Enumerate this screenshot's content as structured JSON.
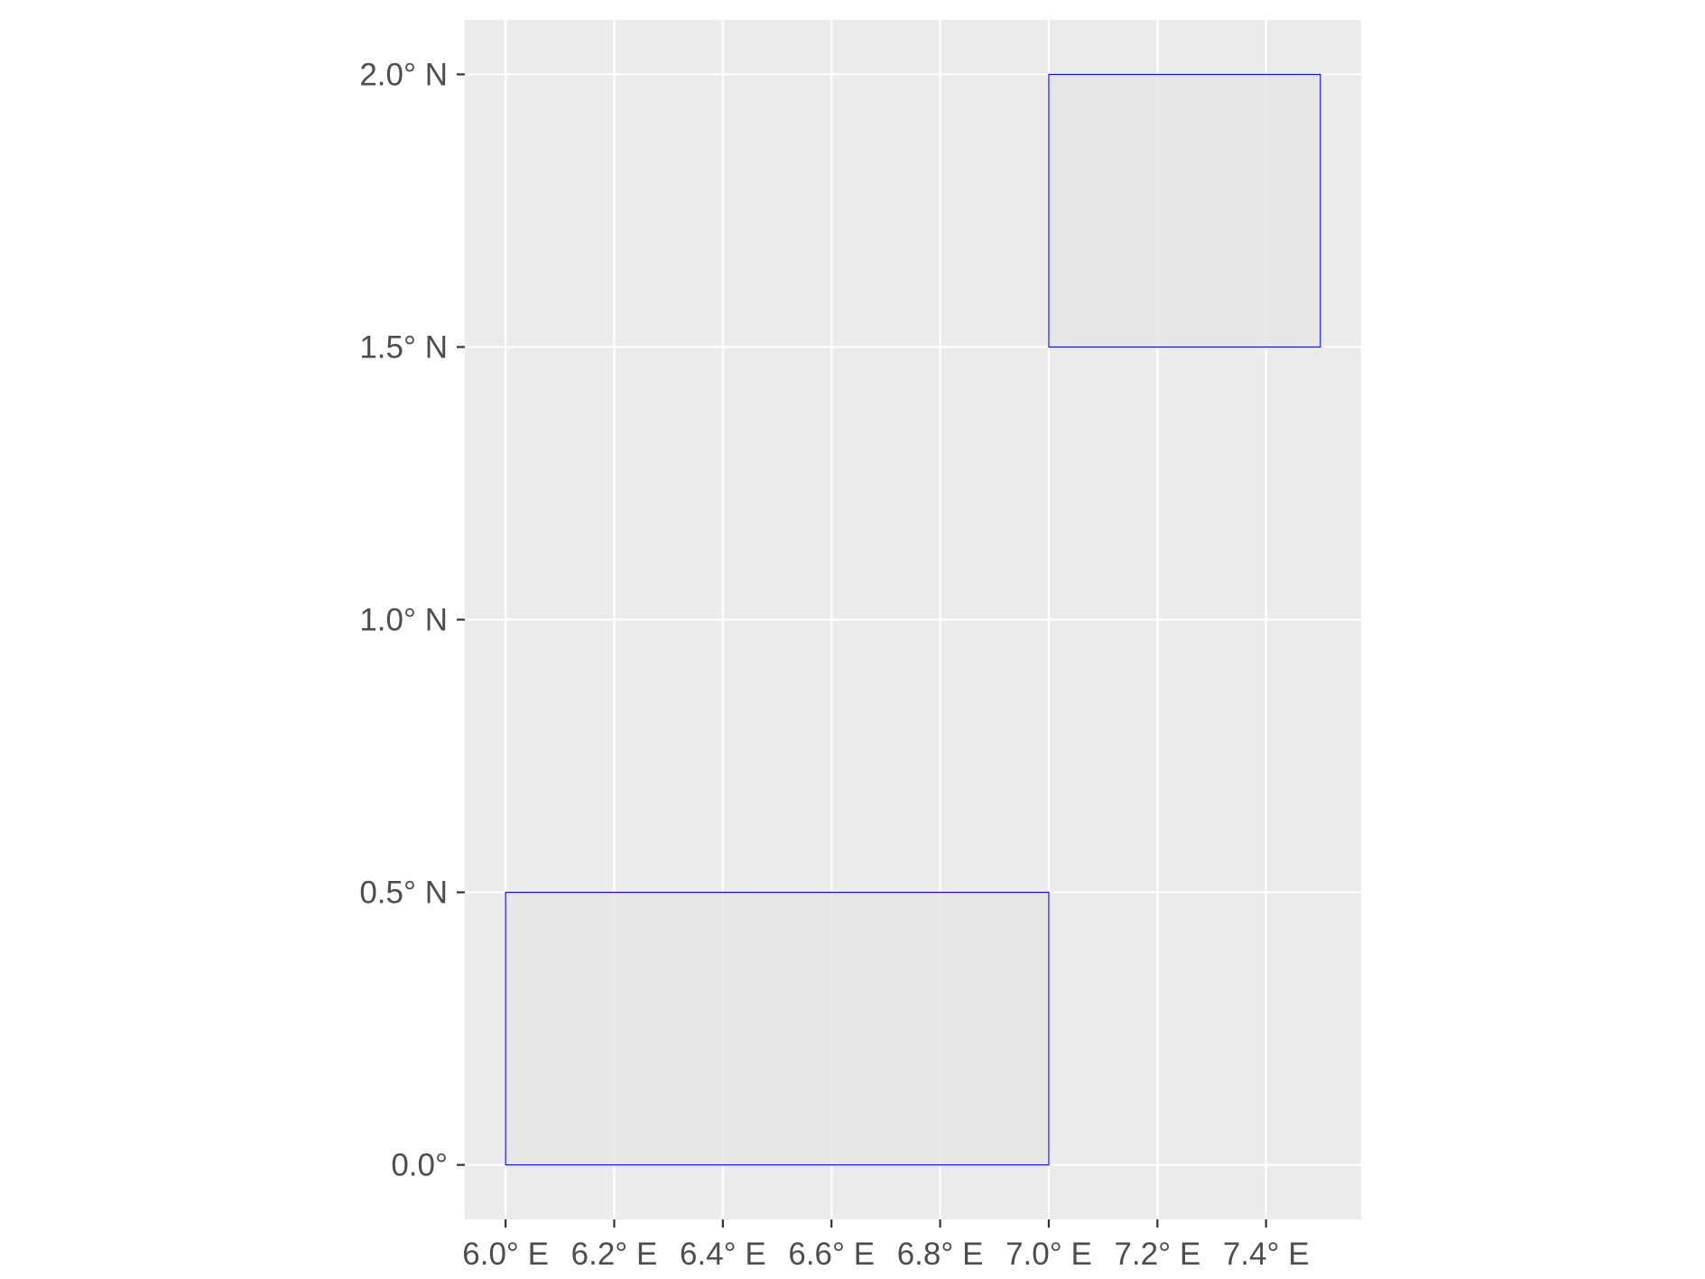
{
  "chart_data": {
    "type": "map",
    "title": "",
    "xlabel": "",
    "ylabel": "",
    "xlim": [
      5.925,
      7.575
    ],
    "ylim": [
      -0.1,
      2.1
    ],
    "x_ticks": [
      {
        "value": 6.0,
        "label": "6.0° E"
      },
      {
        "value": 6.2,
        "label": "6.2° E"
      },
      {
        "value": 6.4,
        "label": "6.4° E"
      },
      {
        "value": 6.6,
        "label": "6.6° E"
      },
      {
        "value": 6.8,
        "label": "6.8° E"
      },
      {
        "value": 7.0,
        "label": "7.0° E"
      },
      {
        "value": 7.2,
        "label": "7.2° E"
      },
      {
        "value": 7.4,
        "label": "7.4° E"
      }
    ],
    "y_ticks": [
      {
        "value": 0.0,
        "label": "0.0°"
      },
      {
        "value": 0.5,
        "label": "0.5° N"
      },
      {
        "value": 1.0,
        "label": "1.0° N"
      },
      {
        "value": 1.5,
        "label": "1.5° N"
      },
      {
        "value": 2.0,
        "label": "2.0° N"
      }
    ],
    "grid": true,
    "polygons": [
      {
        "xmin": 6.0,
        "xmax": 7.0,
        "ymin": 0.0,
        "ymax": 0.5
      },
      {
        "xmin": 7.0,
        "xmax": 7.5,
        "ymin": 1.5,
        "ymax": 2.0
      }
    ],
    "colors": {
      "panel_background": "#ebebeb",
      "grid": "#ffffff",
      "polygon_fill": "#e5e5e5",
      "polygon_stroke": "#0000ff",
      "tick": "#333333",
      "text": "#4d4d4d"
    }
  }
}
